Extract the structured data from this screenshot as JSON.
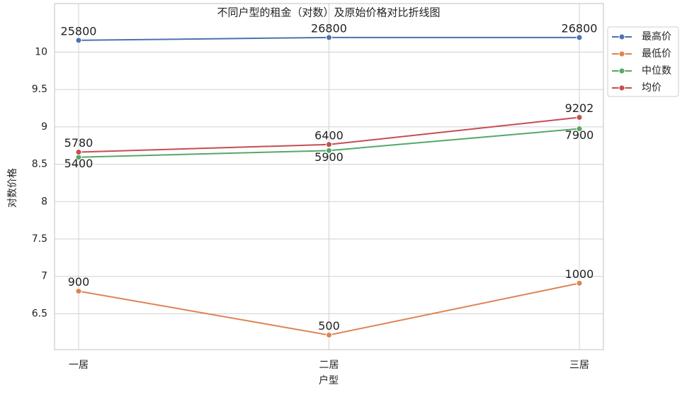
{
  "chart_data": {
    "type": "line",
    "title": "不同户型的租金（对数）及原始价格对比折线图",
    "x_label": "户型",
    "y_label": "对数价格",
    "categories": [
      "一居",
      "二居",
      "三居"
    ],
    "series": [
      {
        "name": "最高价",
        "color": "#4c72b0",
        "values": [
          10.158,
          10.196,
          10.196
        ],
        "value_labels": [
          "25800",
          "26800",
          "26800"
        ]
      },
      {
        "name": "最低价",
        "color": "#dd8452",
        "values": [
          6.802,
          6.215,
          6.908
        ],
        "value_labels": [
          "900",
          "500",
          "1000"
        ]
      },
      {
        "name": "中位数",
        "color": "#55a868",
        "values": [
          8.594,
          8.683,
          8.975
        ],
        "value_labels": [
          "5400",
          "5900",
          "7900"
        ]
      },
      {
        "name": "均价",
        "color": "#c44e52",
        "values": [
          8.662,
          8.764,
          9.127
        ],
        "value_labels": [
          "5780",
          "6400",
          "9202"
        ]
      }
    ],
    "ylim": [
      6.02,
      10.65
    ],
    "yticks": [
      6.5,
      7.0,
      7.5,
      8.0,
      8.5,
      9.0,
      9.5,
      10.0
    ],
    "grid": true,
    "legend": "outside-upper-right"
  }
}
